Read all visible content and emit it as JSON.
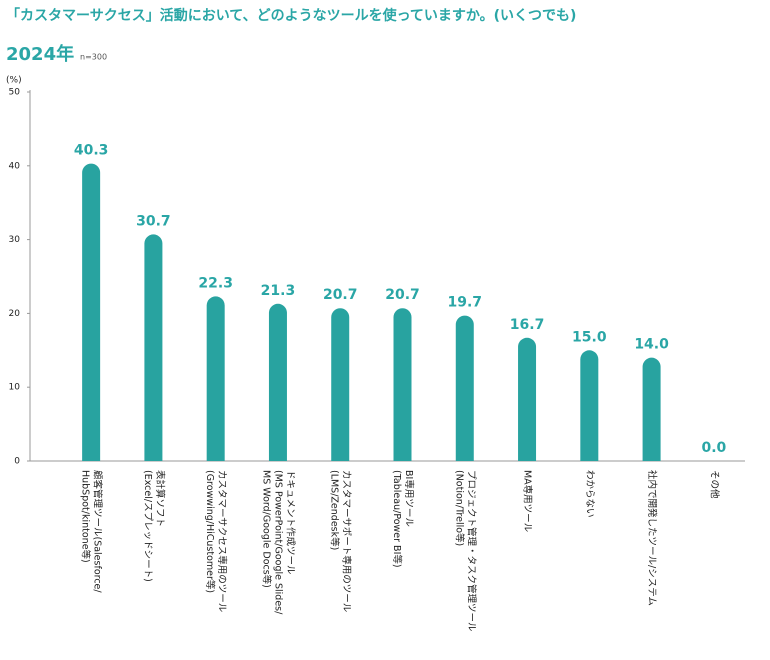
{
  "chart_data": {
    "type": "bar",
    "title": "「カスタマーサクセス」活動において、どのようなツールを使っていますか。(いくつでも)",
    "subtitle": "2024年",
    "sample_size": "n=300",
    "y_axis_label": "(%)",
    "categories": [
      [
        "顧客管理ツール(Salesforce/",
        "HubSpot/kintone等)"
      ],
      [
        "表計算ソフト",
        "(Excel/スプレッドシート)"
      ],
      [
        "カスタマーサクセス専用のツール",
        "(Growwing/HiCustomer等)"
      ],
      [
        "ドキュメント作成ツール",
        "(MS PowerPoint/Google Slides/",
        "MS Word/Google Docs等)"
      ],
      [
        "カスタマーサポート専用のツール",
        "(LMS/Zendesk等)"
      ],
      [
        "BI専用ツール",
        "(Tableau/Power BI等)"
      ],
      [
        "プロジェクト管理・タスク管理ツール",
        "(Notion/Trello等)"
      ],
      [
        "MA専用ツール"
      ],
      [
        "わからない"
      ],
      [
        "社内で開発したツール/システム"
      ],
      [
        "その他"
      ]
    ],
    "values": [
      40.3,
      30.7,
      22.3,
      21.3,
      20.7,
      20.7,
      19.7,
      16.7,
      15.0,
      14.0,
      0.0
    ],
    "value_labels": [
      "40.3",
      "30.7",
      "22.3",
      "21.3",
      "20.7",
      "20.7",
      "19.7",
      "16.7",
      "15.0",
      "14.0",
      "0.0"
    ],
    "color": "#28a3a0",
    "ylim": [
      0,
      50
    ],
    "yticks": [
      0,
      10,
      20,
      30,
      40,
      50
    ],
    "grid": false
  }
}
